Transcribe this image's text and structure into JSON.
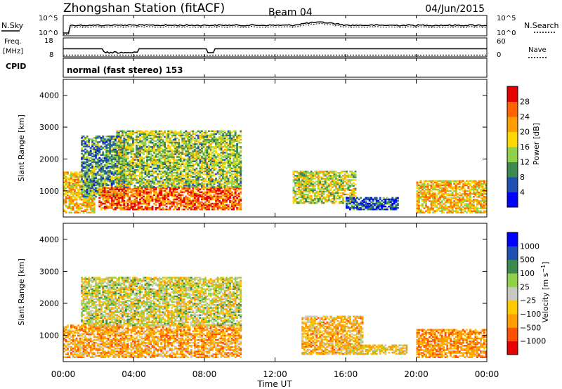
{
  "header": {
    "station": "Zhongshan Station (fitACF)",
    "beam": "Beam 04",
    "date": "04/Jun/2015"
  },
  "top_panels": {
    "nsky_label": "N.Sky",
    "nsearch_label": "N.Search",
    "noise_ticks": [
      "10^5",
      "10^0"
    ],
    "freq_label": "Freq.",
    "freq_unit": "[MHz]",
    "freq_ticks": [
      "18",
      "8"
    ],
    "nave_label": "Nave",
    "nave_ticks": [
      "60",
      "0"
    ],
    "cpid_label": "CPID",
    "cpid_value": "normal (fast stereo) 153"
  },
  "colors": {
    "power": [
      "#0000ff",
      "#1e4fb4",
      "#3d8a4f",
      "#8fd24a",
      "#ffd700",
      "#ff9c00",
      "#ff6400",
      "#e60000"
    ],
    "velocity": [
      "#e60000",
      "#ff5000",
      "#ff9c00",
      "#ffc800",
      "#c8c8c0",
      "#8fd24a",
      "#3d8a4f",
      "#1e4fb4",
      "#0000ff"
    ]
  },
  "chart_data": [
    {
      "type": "heatmap",
      "title": "Power",
      "ylabel": "Slant Range [km]",
      "ylim": [
        180,
        4500
      ],
      "yticks": [
        "1000",
        "2000",
        "3000",
        "4000"
      ],
      "colorbar_label": "Power [dB]",
      "colorbar_ticks": [
        "4",
        "8",
        "12",
        "16",
        "20",
        "24",
        "28"
      ],
      "clim": [
        0,
        32
      ],
      "approx_regions": [
        {
          "t": [
            0.0,
            1.8
          ],
          "r": [
            300,
            1600
          ],
          "value": 20
        },
        {
          "t": [
            1.0,
            3.5
          ],
          "r": [
            800,
            2700
          ],
          "value": 10
        },
        {
          "t": [
            2.0,
            10.0
          ],
          "r": [
            400,
            1100
          ],
          "value": 26
        },
        {
          "t": [
            3.0,
            10.0
          ],
          "r": [
            1100,
            2900
          ],
          "value": 14
        },
        {
          "t": [
            13.0,
            16.5
          ],
          "r": [
            600,
            1600
          ],
          "value": 16
        },
        {
          "t": [
            16.0,
            19.0
          ],
          "r": [
            400,
            800
          ],
          "value": 6
        },
        {
          "t": [
            20.0,
            24.0
          ],
          "r": [
            300,
            1300
          ],
          "value": 20
        }
      ]
    },
    {
      "type": "heatmap",
      "title": "Velocity",
      "ylabel": "Slant Range [km]",
      "ylim": [
        180,
        4500
      ],
      "yticks": [
        "1000",
        "2000",
        "3000",
        "4000"
      ],
      "colorbar_label": "Velocity [m s^-1]",
      "colorbar_ticks": [
        "1000",
        "500",
        "100",
        "25",
        "−25",
        "−100",
        "−500",
        "−1000"
      ],
      "approx_regions": [
        {
          "t": [
            0.0,
            10.0
          ],
          "r": [
            300,
            1300
          ],
          "v": -120
        },
        {
          "t": [
            1.0,
            10.0
          ],
          "r": [
            1300,
            2800
          ],
          "v": 0
        },
        {
          "t": [
            13.5,
            17.0
          ],
          "r": [
            400,
            1600
          ],
          "v": -90
        },
        {
          "t": [
            16.0,
            19.5
          ],
          "r": [
            400,
            700
          ],
          "v": -60
        },
        {
          "t": [
            20.0,
            24.0
          ],
          "r": [
            300,
            1200
          ],
          "v": -150
        }
      ]
    }
  ],
  "xaxis": {
    "ticks": [
      "00:00",
      "04:00",
      "08:00",
      "12:00",
      "16:00",
      "20:00",
      "00:00"
    ],
    "label": "Time UT",
    "range_hours": [
      0,
      24
    ]
  }
}
